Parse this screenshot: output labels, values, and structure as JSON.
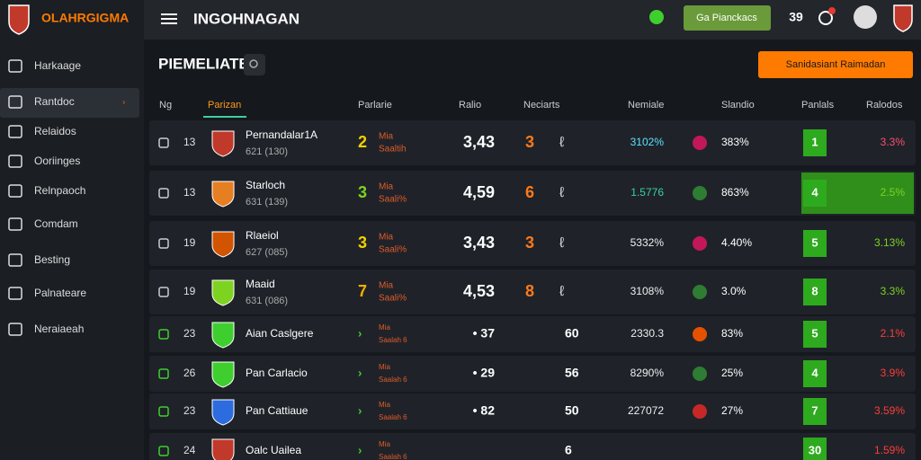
{
  "header": {
    "logo": "OLAHRGIGMA",
    "title": "INGOHNAGAN",
    "button": "Ga Pianckacs",
    "count": "39"
  },
  "sidebar": [
    "Harkaage",
    "Rantdoc",
    "Relaidos",
    "Ooriinges",
    "Relnpaoch",
    "Comdam",
    "Besting",
    "Palnateare",
    "Neraiaeah"
  ],
  "content": {
    "title": "PIEMELIATE",
    "button": "Sanidasiant Raimadan",
    "table": {
      "headers": [
        "Ng",
        "Parizan",
        "Parlarie",
        "Ralio",
        "Neciarts",
        "Nemiale",
        "Slandio",
        "Panlals",
        "Ralodos"
      ],
      "rows": [
        {
          "rank": "13",
          "name": "Pernandalar1A",
          "sub": "621 (130)",
          "n": "2",
          "tag": "Mia",
          "tag2": "Saaltih",
          "ratio": "3,43",
          "n2": "3",
          "mark": "ℓ",
          "pct": "3102%",
          "pct2": "383%",
          "points": "1",
          "last": "3.3%"
        },
        {
          "rank": "13",
          "name": "Starloch",
          "sub": "631 (139)",
          "n": "3",
          "tag": "Mia",
          "tag2": "Saali%",
          "ratio": "4,59",
          "n2": "6",
          "mark": "ℓ",
          "pct": "1.5776",
          "pct2": "863%",
          "points": "4",
          "last": "2.5%"
        },
        {
          "rank": "19",
          "name": "Rlaeiol",
          "sub": "627 (085)",
          "n": "3",
          "tag": "Mia",
          "tag2": "Saali%",
          "ratio": "3,43",
          "n2": "3",
          "mark": "ℓ",
          "pct": "5332%",
          "pct2": "4.40%",
          "points": "5",
          "last": "3.13%"
        },
        {
          "rank": "19",
          "name": "Maaid",
          "sub": "631 (086)",
          "n": "7",
          "tag": "Mia",
          "tag2": "Saali%",
          "ratio": "4,53",
          "n2": "8",
          "mark": "ℓ",
          "pct": "3108%",
          "pct2": "3.0%",
          "points": "8",
          "last": "3.3%"
        },
        {
          "rank": "23",
          "name": "Aian Caslgere",
          "n": "›",
          "tag": "Mia",
          "tag2": "Saalah 6",
          "ratio": "• 37",
          "n2": "60",
          "pct": "2330.3",
          "pct2": "83%",
          "points": "5",
          "last": "2.1%"
        },
        {
          "rank": "26",
          "name": "Pan Carlacio",
          "n": "›",
          "tag": "Mia",
          "tag2": "Saalah 6",
          "ratio": "• 29",
          "n2": "56",
          "pct": "8290%",
          "pct2": "25%",
          "points": "4",
          "last": "3.9%"
        },
        {
          "rank": "23",
          "name": "Pan Cattiaue",
          "n": "›",
          "tag": "Mia",
          "tag2": "Saalah 6",
          "ratio": "• 82",
          "n2": "50",
          "pct": "227072",
          "pct2": "27%",
          "points": "7",
          "last": "3.59%"
        },
        {
          "rank": "24",
          "name": "Oalc Uailea",
          "n": "›",
          "tag": "Mia",
          "tag2": "Saalah 6",
          "ratio": "",
          "n2": "6",
          "pct": "",
          "pct2": "",
          "points": "30",
          "last": "1.59%"
        }
      ]
    }
  }
}
